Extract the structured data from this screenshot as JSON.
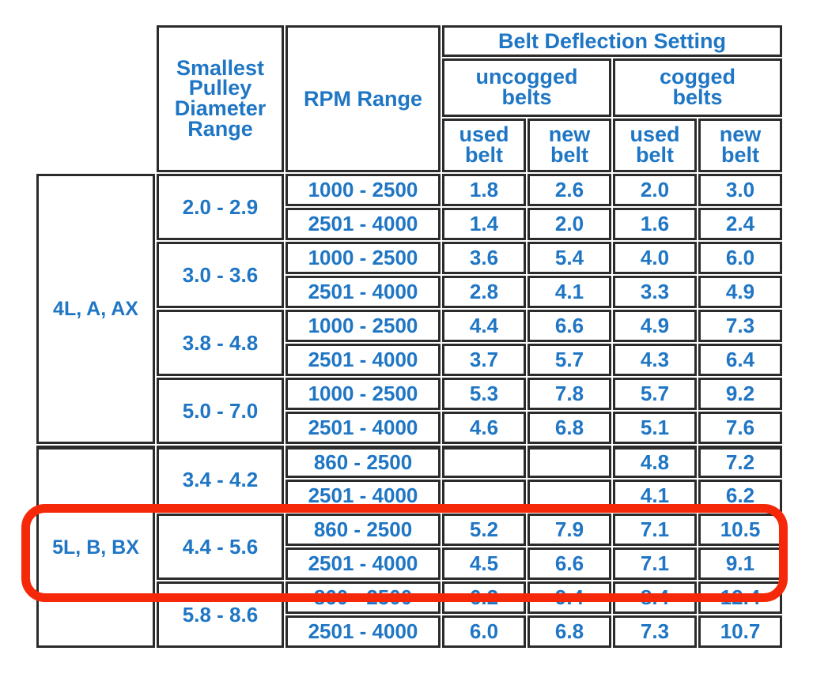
{
  "chart_data": {
    "type": "table",
    "title": "Belt Deflection Setting",
    "header": {
      "smallest_pulley": "Smallest\nPulley\nDiameter\nRange",
      "rpm_range": "RPM Range",
      "belt_deflection": "Belt Deflection Setting",
      "uncogged": "uncogged\nbelts",
      "cogged": "cogged\nbelts",
      "used_belt": "used\nbelt",
      "new_belt": "new\nbelt"
    },
    "sections": [
      {
        "group": "4L, A, AX",
        "diameter_groups": [
          {
            "range": "2.0 - 2.9",
            "rows": [
              {
                "rpm": "1000 - 2500",
                "uncogged_used": "1.8",
                "uncogged_new": "2.6",
                "cogged_used": "2.0",
                "cogged_new": "3.0"
              },
              {
                "rpm": "2501 - 4000",
                "uncogged_used": "1.4",
                "uncogged_new": "2.0",
                "cogged_used": "1.6",
                "cogged_new": "2.4"
              }
            ]
          },
          {
            "range": "3.0 - 3.6",
            "rows": [
              {
                "rpm": "1000 - 2500",
                "uncogged_used": "3.6",
                "uncogged_new": "5.4",
                "cogged_used": "4.0",
                "cogged_new": "6.0"
              },
              {
                "rpm": "2501 - 4000",
                "uncogged_used": "2.8",
                "uncogged_new": "4.1",
                "cogged_used": "3.3",
                "cogged_new": "4.9"
              }
            ]
          },
          {
            "range": "3.8 - 4.8",
            "rows": [
              {
                "rpm": "1000 - 2500",
                "uncogged_used": "4.4",
                "uncogged_new": "6.6",
                "cogged_used": "4.9",
                "cogged_new": "7.3"
              },
              {
                "rpm": "2501 - 4000",
                "uncogged_used": "3.7",
                "uncogged_new": "5.7",
                "cogged_used": "4.3",
                "cogged_new": "6.4"
              }
            ]
          },
          {
            "range": "5.0 - 7.0",
            "rows": [
              {
                "rpm": "1000 - 2500",
                "uncogged_used": "5.3",
                "uncogged_new": "7.8",
                "cogged_used": "5.7",
                "cogged_new": "9.2"
              },
              {
                "rpm": "2501 - 4000",
                "uncogged_used": "4.6",
                "uncogged_new": "6.8",
                "cogged_used": "5.1",
                "cogged_new": "7.6"
              }
            ]
          }
        ]
      },
      {
        "group": "5L, B, BX",
        "diameter_groups": [
          {
            "range": "3.4 - 4.2",
            "rows": [
              {
                "rpm": "860 - 2500",
                "uncogged_used": "",
                "uncogged_new": "",
                "cogged_used": "4.8",
                "cogged_new": "7.2"
              },
              {
                "rpm": "2501 - 4000",
                "uncogged_used": "",
                "uncogged_new": "",
                "cogged_used": "4.1",
                "cogged_new": "6.2"
              }
            ]
          },
          {
            "range": "4.4 - 5.6",
            "rows": [
              {
                "rpm": "860 - 2500",
                "uncogged_used": "5.2",
                "uncogged_new": "7.9",
                "cogged_used": "7.1",
                "cogged_new": "10.5"
              },
              {
                "rpm": "2501 - 4000",
                "uncogged_used": "4.5",
                "uncogged_new": "6.6",
                "cogged_used": "7.1",
                "cogged_new": "9.1"
              }
            ]
          },
          {
            "range": "5.8 - 8.6",
            "rows": [
              {
                "rpm": "860 - 2500",
                "uncogged_used": "6.2",
                "uncogged_new": "9.4",
                "cogged_used": "8.4",
                "cogged_new": "12.4"
              },
              {
                "rpm": "2501 - 4000",
                "uncogged_used": "6.0",
                "uncogged_new": "6.8",
                "cogged_used": "7.3",
                "cogged_new": "10.7"
              }
            ]
          }
        ]
      }
    ]
  },
  "annotation": {
    "shape": "rounded-rectangle-outline",
    "encircles": "5L, B, BX / 4.4 - 5.6 rows",
    "color": "#f5290a"
  },
  "colors": {
    "text": "#1f76c4",
    "grid": "#2b2b2b",
    "background": "#ffffff",
    "highlight": "#f5290a"
  }
}
